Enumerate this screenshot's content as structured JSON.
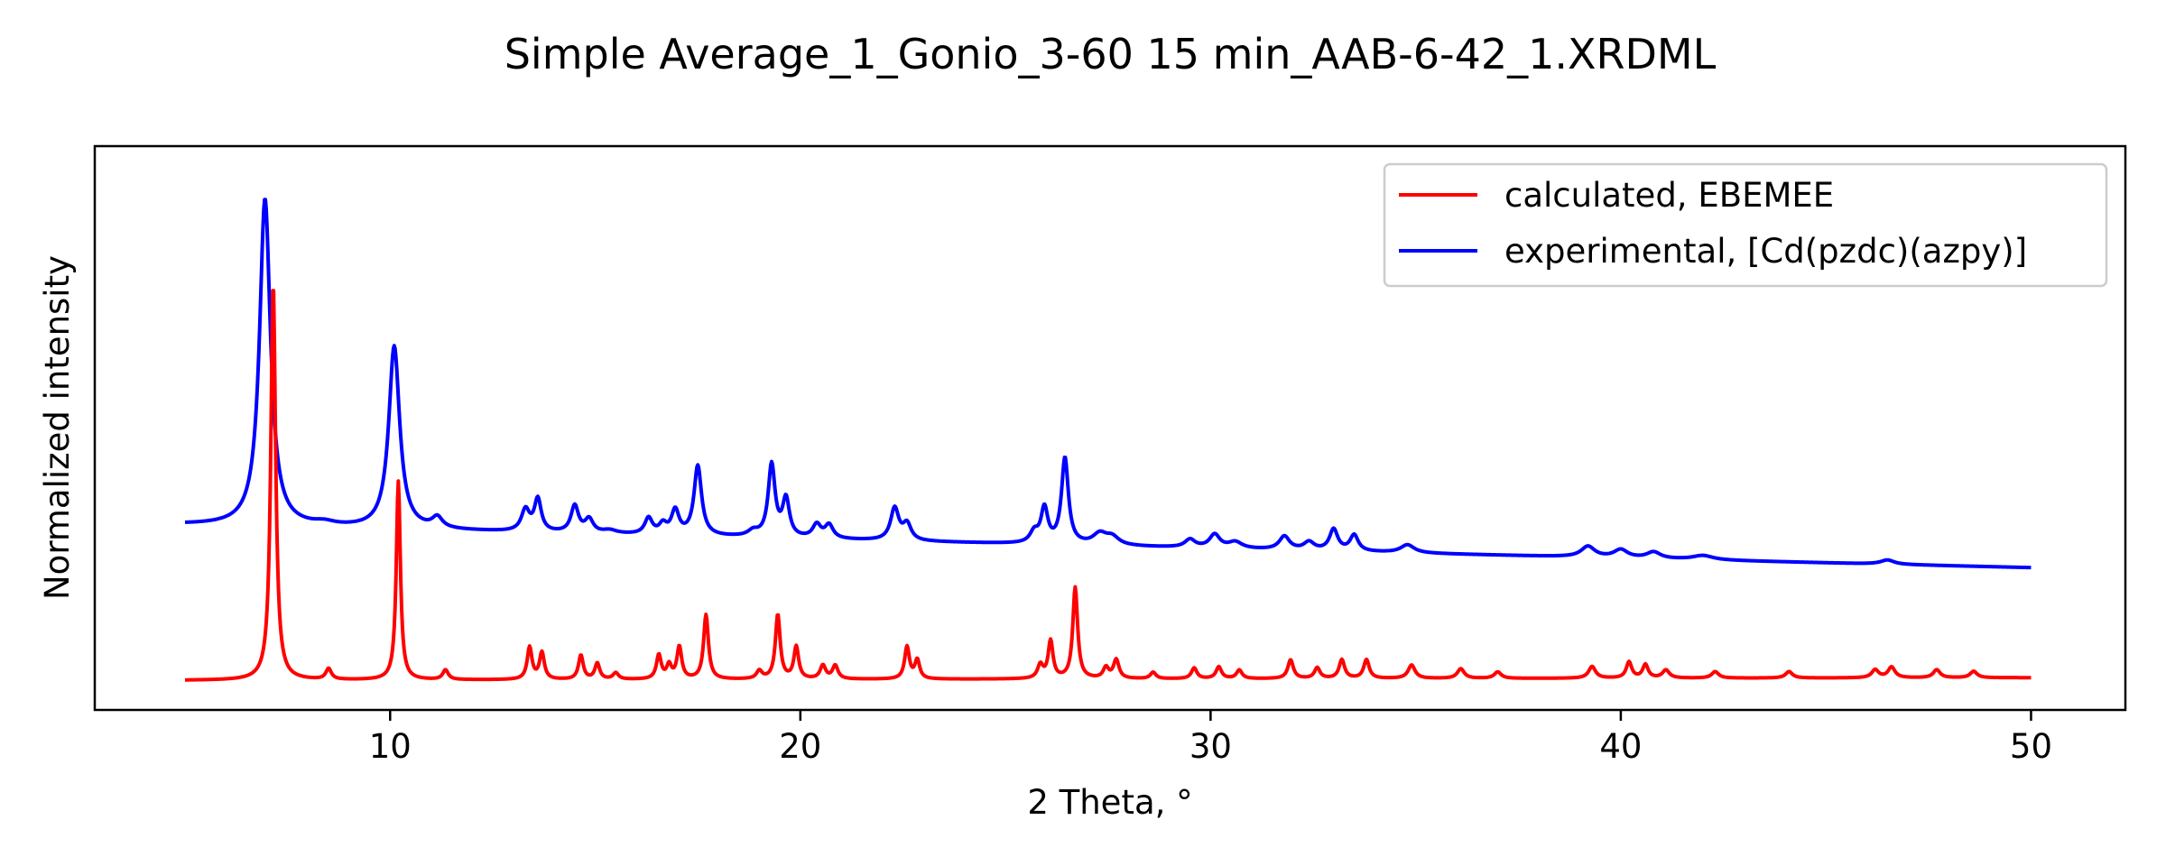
{
  "chart_data": {
    "type": "line",
    "title": "Simple Average_1_Gonio_3-60 15 min_AAB-6-42_1.XRDML",
    "xlabel": "2 Theta, °",
    "ylabel": "Normalized intensity",
    "xlim": [
      2.8,
      52.3
    ],
    "ylim": [
      0,
      1.05
    ],
    "xticks": [
      10,
      20,
      30,
      40,
      50
    ],
    "yticks_shown": false,
    "grid": false,
    "legend_placement": "top-right",
    "series": [
      {
        "name": "calculated, EBEMEE",
        "color": "#ff0000",
        "baseline": 0.055,
        "baseline_end": 0.06,
        "peaks": [
          [
            7.15,
            0.74,
            0.07
          ],
          [
            8.5,
            0.02,
            0.08
          ],
          [
            10.2,
            0.37,
            0.06
          ],
          [
            11.35,
            0.018,
            0.08
          ],
          [
            13.4,
            0.06,
            0.07
          ],
          [
            13.7,
            0.05,
            0.07
          ],
          [
            14.65,
            0.045,
            0.07
          ],
          [
            15.05,
            0.03,
            0.07
          ],
          [
            15.5,
            0.012,
            0.08
          ],
          [
            16.55,
            0.045,
            0.07
          ],
          [
            16.8,
            0.025,
            0.07
          ],
          [
            17.05,
            0.06,
            0.07
          ],
          [
            17.7,
            0.12,
            0.07
          ],
          [
            19.0,
            0.015,
            0.08
          ],
          [
            19.45,
            0.12,
            0.07
          ],
          [
            19.9,
            0.06,
            0.07
          ],
          [
            20.55,
            0.025,
            0.08
          ],
          [
            20.85,
            0.025,
            0.08
          ],
          [
            22.6,
            0.06,
            0.07
          ],
          [
            22.85,
            0.035,
            0.07
          ],
          [
            25.85,
            0.025,
            0.08
          ],
          [
            26.1,
            0.07,
            0.07
          ],
          [
            26.7,
            0.17,
            0.07
          ],
          [
            27.45,
            0.02,
            0.08
          ],
          [
            27.7,
            0.035,
            0.08
          ],
          [
            28.6,
            0.012,
            0.08
          ],
          [
            29.6,
            0.02,
            0.08
          ],
          [
            30.2,
            0.022,
            0.08
          ],
          [
            30.7,
            0.016,
            0.08
          ],
          [
            31.95,
            0.035,
            0.08
          ],
          [
            32.6,
            0.02,
            0.08
          ],
          [
            33.2,
            0.035,
            0.08
          ],
          [
            33.8,
            0.035,
            0.08
          ],
          [
            34.9,
            0.025,
            0.1
          ],
          [
            36.1,
            0.018,
            0.1
          ],
          [
            37.0,
            0.012,
            0.1
          ],
          [
            39.3,
            0.022,
            0.1
          ],
          [
            40.2,
            0.03,
            0.08
          ],
          [
            40.6,
            0.025,
            0.08
          ],
          [
            41.1,
            0.015,
            0.1
          ],
          [
            42.3,
            0.012,
            0.1
          ],
          [
            44.1,
            0.012,
            0.1
          ],
          [
            46.2,
            0.015,
            0.1
          ],
          [
            46.6,
            0.02,
            0.1
          ],
          [
            47.7,
            0.015,
            0.1
          ],
          [
            48.6,
            0.012,
            0.1
          ]
        ]
      },
      {
        "name": "experimental, [Cd(pzdc)(azpy)]",
        "color": "#0000ff",
        "baseline": 0.345,
        "baseline_end": 0.265,
        "peaks": [
          [
            6.95,
            0.61,
            0.16
          ],
          [
            8.4,
            0.006,
            0.3
          ],
          [
            10.1,
            0.34,
            0.16
          ],
          [
            11.15,
            0.02,
            0.15
          ],
          [
            13.3,
            0.04,
            0.12
          ],
          [
            13.6,
            0.06,
            0.1
          ],
          [
            14.5,
            0.05,
            0.11
          ],
          [
            14.85,
            0.025,
            0.12
          ],
          [
            15.35,
            0.006,
            0.2
          ],
          [
            16.3,
            0.03,
            0.11
          ],
          [
            16.65,
            0.018,
            0.11
          ],
          [
            16.95,
            0.045,
            0.11
          ],
          [
            17.5,
            0.13,
            0.11
          ],
          [
            18.85,
            0.01,
            0.15
          ],
          [
            19.3,
            0.135,
            0.1
          ],
          [
            19.65,
            0.07,
            0.1
          ],
          [
            20.4,
            0.025,
            0.12
          ],
          [
            20.7,
            0.025,
            0.12
          ],
          [
            22.3,
            0.06,
            0.12
          ],
          [
            22.6,
            0.03,
            0.12
          ],
          [
            25.7,
            0.02,
            0.12
          ],
          [
            25.95,
            0.065,
            0.1
          ],
          [
            26.45,
            0.16,
            0.1
          ],
          [
            27.3,
            0.02,
            0.2
          ],
          [
            27.6,
            0.015,
            0.2
          ],
          [
            29.5,
            0.015,
            0.15
          ],
          [
            30.1,
            0.025,
            0.15
          ],
          [
            30.6,
            0.012,
            0.2
          ],
          [
            31.8,
            0.025,
            0.15
          ],
          [
            32.4,
            0.015,
            0.15
          ],
          [
            33.0,
            0.04,
            0.12
          ],
          [
            33.5,
            0.03,
            0.12
          ],
          [
            34.8,
            0.015,
            0.2
          ],
          [
            39.2,
            0.02,
            0.2
          ],
          [
            40.0,
            0.015,
            0.2
          ],
          [
            40.8,
            0.012,
            0.2
          ],
          [
            42.0,
            0.008,
            0.3
          ],
          [
            46.5,
            0.008,
            0.2
          ]
        ]
      }
    ]
  }
}
